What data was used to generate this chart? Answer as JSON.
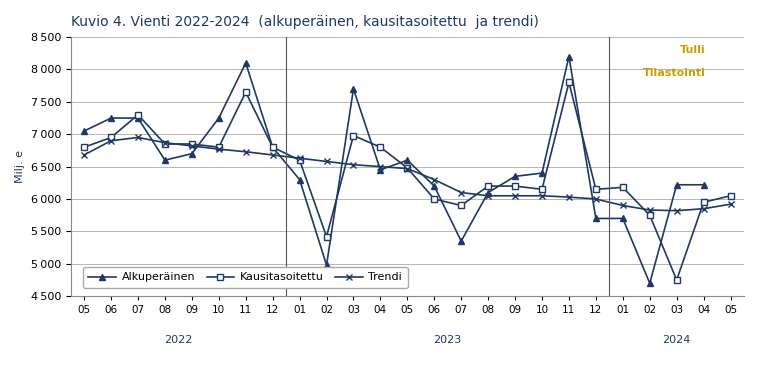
{
  "title": "Kuvio 4. Vienti 2022-2024  (alkuperäinen, kausitasoitettu  ja trendi)",
  "watermark_line1": "Tulli",
  "watermark_line2": "Tilastointi",
  "ylabel": "Milj. e",
  "ylim": [
    4500,
    8500
  ],
  "yticks": [
    4500,
    5000,
    5500,
    6000,
    6500,
    7000,
    7500,
    8000,
    8500
  ],
  "x_labels": [
    "05",
    "06",
    "07",
    "08",
    "09",
    "10",
    "11",
    "12",
    "01",
    "02",
    "03",
    "04",
    "05",
    "06",
    "07",
    "08",
    "09",
    "10",
    "11",
    "12",
    "01",
    "02",
    "03",
    "04",
    "05"
  ],
  "year_labels": [
    {
      "label": "2022",
      "start": 0,
      "end": 7
    },
    {
      "label": "2023",
      "start": 8,
      "end": 19
    },
    {
      "label": "2024",
      "start": 20,
      "end": 24
    }
  ],
  "year_dividers": [
    8,
    20
  ],
  "alkuperainen": [
    7050,
    7250,
    7250,
    6600,
    6700,
    7250,
    8100,
    6800,
    6300,
    4980,
    7700,
    6450,
    6600,
    6200,
    5350,
    6100,
    6350,
    6400,
    8200,
    5700,
    5700,
    4700,
    6220,
    6220,
    null
  ],
  "kausitasoitettu": [
    6800,
    6950,
    7300,
    6850,
    6850,
    6800,
    7650,
    6800,
    6600,
    5420,
    6980,
    6800,
    6480,
    6000,
    5900,
    6200,
    6200,
    6150,
    7800,
    6150,
    6180,
    5750,
    4750,
    5950,
    6050
  ],
  "trendi": [
    6680,
    6900,
    6950,
    6870,
    6820,
    6770,
    6730,
    6680,
    6630,
    6580,
    6530,
    6500,
    6470,
    6300,
    6100,
    6050,
    6050,
    6050,
    6030,
    6000,
    5900,
    5830,
    5820,
    5850,
    5920
  ],
  "line_color": "#1f3864",
  "line_color2": "#1f3864",
  "legend_labels": [
    "Alkuperäinen",
    "Kausitasoitettu",
    "Trendi"
  ],
  "background_color": "#ffffff",
  "grid_color": "#aaaaaa",
  "title_color": "#1f3864",
  "watermark_color": "#c8a000"
}
